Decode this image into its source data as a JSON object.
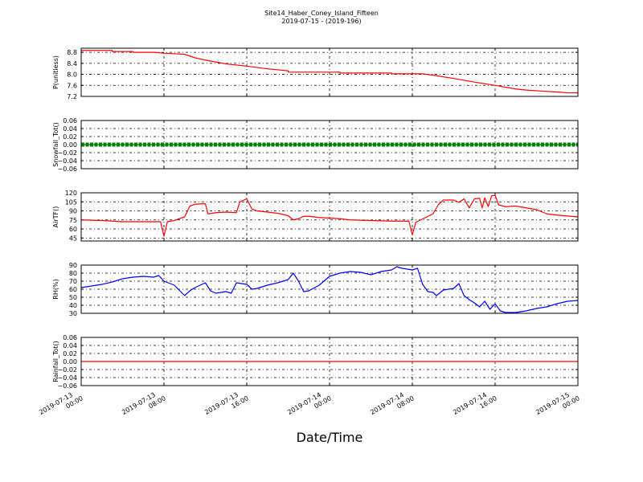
{
  "chart_data": {
    "type": "line",
    "title": "Site14_Haber_Coney_Island_Fifteen",
    "subtitle": "2019-07-15 - (2019-196)",
    "xlabel": "Date/Time",
    "x_range": [
      "2019-07-13 00:00",
      "2019-07-15 00:00"
    ],
    "x_ticks": [
      {
        "t": "2019-07-13 00:00",
        "line1": "2019-07-13",
        "line2": "00:00"
      },
      {
        "t": "2019-07-13 08:00",
        "line1": "2019-07-13",
        "line2": "08:00"
      },
      {
        "t": "2019-07-13 16:00",
        "line1": "2019-07-13",
        "line2": "16:00"
      },
      {
        "t": "2019-07-14 00:00",
        "line1": "2019-07-14",
        "line2": "00:00"
      },
      {
        "t": "2019-07-14 08:00",
        "line1": "2019-07-14",
        "line2": "08:00"
      },
      {
        "t": "2019-07-14 16:00",
        "line1": "2019-07-14",
        "line2": "16:00"
      },
      {
        "t": "2019-07-15 00:00",
        "line1": "2019-07-15",
        "line2": "00:00"
      }
    ],
    "grid": true,
    "panels": [
      {
        "ylabel": "P(unitless)",
        "ylim": [
          7.2,
          8.95
        ],
        "yticks": [
          "8.8",
          "8.4",
          "8.0",
          "7.6",
          "7.2"
        ],
        "series": [
          {
            "color": "#ff0000",
            "marker": false,
            "points": [
              [
                "2019-07-13 00:00",
                8.87
              ],
              [
                "2019-07-13 03:00",
                8.87
              ],
              [
                "2019-07-13 03:00",
                8.83
              ],
              [
                "2019-07-13 05:00",
                8.83
              ],
              [
                "2019-07-13 05:00",
                8.8
              ],
              [
                "2019-07-13 07:00",
                8.8
              ],
              [
                "2019-07-13 08:00",
                8.77
              ],
              [
                "2019-07-13 10:00",
                8.73
              ],
              [
                "2019-07-13 11:00",
                8.6
              ],
              [
                "2019-07-13 12:00",
                8.52
              ],
              [
                "2019-07-13 13:00",
                8.45
              ],
              [
                "2019-07-13 14:00",
                8.38
              ],
              [
                "2019-07-13 16:00",
                8.3
              ],
              [
                "2019-07-13 18:00",
                8.2
              ],
              [
                "2019-07-13 20:00",
                8.13
              ],
              [
                "2019-07-13 20:00",
                8.08
              ],
              [
                "2019-07-14 01:00",
                8.08
              ],
              [
                "2019-07-14 01:00",
                8.05
              ],
              [
                "2019-07-14 06:00",
                8.05
              ],
              [
                "2019-07-14 06:00",
                8.02
              ],
              [
                "2019-07-14 09:00",
                8.02
              ],
              [
                "2019-07-14 10:00",
                7.97
              ],
              [
                "2019-07-14 12:00",
                7.85
              ],
              [
                "2019-07-14 14:00",
                7.72
              ],
              [
                "2019-07-14 16:00",
                7.6
              ],
              [
                "2019-07-14 18:00",
                7.47
              ],
              [
                "2019-07-14 19:00",
                7.43
              ],
              [
                "2019-07-14 21:00",
                7.38
              ],
              [
                "2019-07-14 22:00",
                7.36
              ],
              [
                "2019-07-14 23:00",
                7.33
              ],
              [
                "2019-07-15 00:00",
                7.33
              ]
            ]
          }
        ]
      },
      {
        "ylabel": "Snowfall_Tot()",
        "ylim": [
          -0.06,
          0.06
        ],
        "yticks": [
          "0.06",
          "0.04",
          "0.02",
          "0.00",
          "−0.02",
          "−0.04",
          "−0.06"
        ],
        "series": [
          {
            "color": "#008000",
            "marker": true,
            "points": [
              [
                "2019-07-13 00:00",
                0.0
              ],
              [
                "2019-07-15 00:00",
                0.0
              ]
            ]
          }
        ]
      },
      {
        "ylabel": "AirTF()",
        "ylim": [
          40,
          120
        ],
        "yticks": [
          "120",
          "105",
          "90",
          "75",
          "60",
          "45"
        ],
        "series": [
          {
            "color": "#ff0000",
            "marker": false,
            "points": [
              [
                "2019-07-13 00:00",
                75
              ],
              [
                "2019-07-13 02:00",
                74
              ],
              [
                "2019-07-13 04:00",
                72
              ],
              [
                "2019-07-13 06:00",
                72
              ],
              [
                "2019-07-13 07:40",
                72
              ],
              [
                "2019-07-13 08:00",
                48
              ],
              [
                "2019-07-13 08:20",
                72
              ],
              [
                "2019-07-13 09:00",
                74
              ],
              [
                "2019-07-13 10:00",
                80
              ],
              [
                "2019-07-13 10:30",
                98
              ],
              [
                "2019-07-13 11:00",
                101
              ],
              [
                "2019-07-13 12:00",
                102
              ],
              [
                "2019-07-13 12:15",
                85
              ],
              [
                "2019-07-13 13:00",
                87
              ],
              [
                "2019-07-13 14:00",
                88
              ],
              [
                "2019-07-13 15:00",
                87
              ],
              [
                "2019-07-13 15:20",
                105
              ],
              [
                "2019-07-13 16:00",
                110
              ],
              [
                "2019-07-13 16:30",
                93
              ],
              [
                "2019-07-13 17:00",
                90
              ],
              [
                "2019-07-13 18:00",
                88
              ],
              [
                "2019-07-13 19:00",
                86
              ],
              [
                "2019-07-13 20:00",
                82
              ],
              [
                "2019-07-13 20:30",
                75
              ],
              [
                "2019-07-13 21:00",
                77
              ],
              [
                "2019-07-13 21:30",
                81
              ],
              [
                "2019-07-13 22:00",
                81
              ],
              [
                "2019-07-13 23:00",
                79
              ],
              [
                "2019-07-14 01:00",
                77
              ],
              [
                "2019-07-14 02:00",
                75
              ],
              [
                "2019-07-14 04:00",
                74
              ],
              [
                "2019-07-14 06:00",
                73
              ],
              [
                "2019-07-14 07:40",
                73
              ],
              [
                "2019-07-14 08:00",
                50
              ],
              [
                "2019-07-14 08:20",
                71
              ],
              [
                "2019-07-14 10:00",
                85
              ],
              [
                "2019-07-14 10:30",
                100
              ],
              [
                "2019-07-14 11:00",
                108
              ],
              [
                "2019-07-14 12:00",
                108
              ],
              [
                "2019-07-14 12:30",
                104
              ],
              [
                "2019-07-14 13:00",
                110
              ],
              [
                "2019-07-14 13:30",
                95
              ],
              [
                "2019-07-14 14:00",
                110
              ],
              [
                "2019-07-14 14:30",
                111
              ],
              [
                "2019-07-14 14:45",
                95
              ],
              [
                "2019-07-14 15:00",
                112
              ],
              [
                "2019-07-14 15:20",
                97
              ],
              [
                "2019-07-14 15:40",
                115
              ],
              [
                "2019-07-14 16:00",
                116
              ],
              [
                "2019-07-14 16:20",
                100
              ],
              [
                "2019-07-14 17:00",
                97
              ],
              [
                "2019-07-14 18:00",
                98
              ],
              [
                "2019-07-14 19:00",
                95
              ],
              [
                "2019-07-14 20:00",
                92
              ],
              [
                "2019-07-14 21:00",
                85
              ],
              [
                "2019-07-14 22:00",
                83
              ],
              [
                "2019-07-15 00:00",
                80
              ]
            ]
          }
        ]
      },
      {
        "ylabel": "RH(%)",
        "ylim": [
          30,
          90
        ],
        "yticks": [
          "90",
          "80",
          "70",
          "60",
          "50",
          "40",
          "30"
        ],
        "series": [
          {
            "color": "#0000ff",
            "marker": false,
            "points": [
              [
                "2019-07-13 00:00",
                62
              ],
              [
                "2019-07-13 02:00",
                66
              ],
              [
                "2019-07-13 03:00",
                69
              ],
              [
                "2019-07-13 04:00",
                73
              ],
              [
                "2019-07-13 05:00",
                75
              ],
              [
                "2019-07-13 06:00",
                76
              ],
              [
                "2019-07-13 07:00",
                75
              ],
              [
                "2019-07-13 07:30",
                77
              ],
              [
                "2019-07-13 08:00",
                70
              ],
              [
                "2019-07-13 09:00",
                65
              ],
              [
                "2019-07-13 10:00",
                52
              ],
              [
                "2019-07-13 10:30",
                58
              ],
              [
                "2019-07-13 11:00",
                62
              ],
              [
                "2019-07-13 12:00",
                68
              ],
              [
                "2019-07-13 12:30",
                58
              ],
              [
                "2019-07-13 13:00",
                55
              ],
              [
                "2019-07-13 14:00",
                57
              ],
              [
                "2019-07-13 14:30",
                55
              ],
              [
                "2019-07-13 15:00",
                68
              ],
              [
                "2019-07-13 16:00",
                66
              ],
              [
                "2019-07-13 16:30",
                60
              ],
              [
                "2019-07-13 17:00",
                61
              ],
              [
                "2019-07-13 18:00",
                65
              ],
              [
                "2019-07-13 19:00",
                68
              ],
              [
                "2019-07-13 20:00",
                72
              ],
              [
                "2019-07-13 20:30",
                80
              ],
              [
                "2019-07-13 21:00",
                70
              ],
              [
                "2019-07-13 21:30",
                57
              ],
              [
                "2019-07-13 22:00",
                58
              ],
              [
                "2019-07-13 23:00",
                65
              ],
              [
                "2019-07-14 00:00",
                76
              ],
              [
                "2019-07-14 01:00",
                80
              ],
              [
                "2019-07-14 02:00",
                82
              ],
              [
                "2019-07-14 03:00",
                81
              ],
              [
                "2019-07-14 04:00",
                78
              ],
              [
                "2019-07-14 05:00",
                82
              ],
              [
                "2019-07-14 06:00",
                84
              ],
              [
                "2019-07-14 06:30",
                88
              ],
              [
                "2019-07-14 07:00",
                86
              ],
              [
                "2019-07-14 08:00",
                84
              ],
              [
                "2019-07-14 08:30",
                86
              ],
              [
                "2019-07-14 09:00",
                66
              ],
              [
                "2019-07-14 09:30",
                57
              ],
              [
                "2019-07-14 10:00",
                56
              ],
              [
                "2019-07-14 10:20",
                52
              ],
              [
                "2019-07-14 11:00",
                59
              ],
              [
                "2019-07-14 12:00",
                61
              ],
              [
                "2019-07-14 12:30",
                67
              ],
              [
                "2019-07-14 13:00",
                52
              ],
              [
                "2019-07-14 13:30",
                47
              ],
              [
                "2019-07-14 14:00",
                43
              ],
              [
                "2019-07-14 14:30",
                38
              ],
              [
                "2019-07-14 15:00",
                45
              ],
              [
                "2019-07-14 15:30",
                35
              ],
              [
                "2019-07-14 16:00",
                42
              ],
              [
                "2019-07-14 16:30",
                33
              ],
              [
                "2019-07-14 17:00",
                31
              ],
              [
                "2019-07-14 18:00",
                31
              ],
              [
                "2019-07-14 19:00",
                33
              ],
              [
                "2019-07-14 20:00",
                36
              ],
              [
                "2019-07-14 21:00",
                38
              ],
              [
                "2019-07-14 22:00",
                42
              ],
              [
                "2019-07-14 23:00",
                45
              ],
              [
                "2019-07-15 00:00",
                46
              ]
            ]
          }
        ]
      },
      {
        "ylabel": "Rainfall_Tot()",
        "ylim": [
          -0.06,
          0.06
        ],
        "yticks": [
          "0.06",
          "0.04",
          "0.02",
          "0.00",
          "−0.02",
          "−0.04",
          "−0.06"
        ],
        "series": [
          {
            "color": "#ff0000",
            "marker": false,
            "points": [
              [
                "2019-07-13 00:00",
                0.0
              ],
              [
                "2019-07-15 00:00",
                0.0
              ]
            ]
          }
        ]
      }
    ]
  }
}
